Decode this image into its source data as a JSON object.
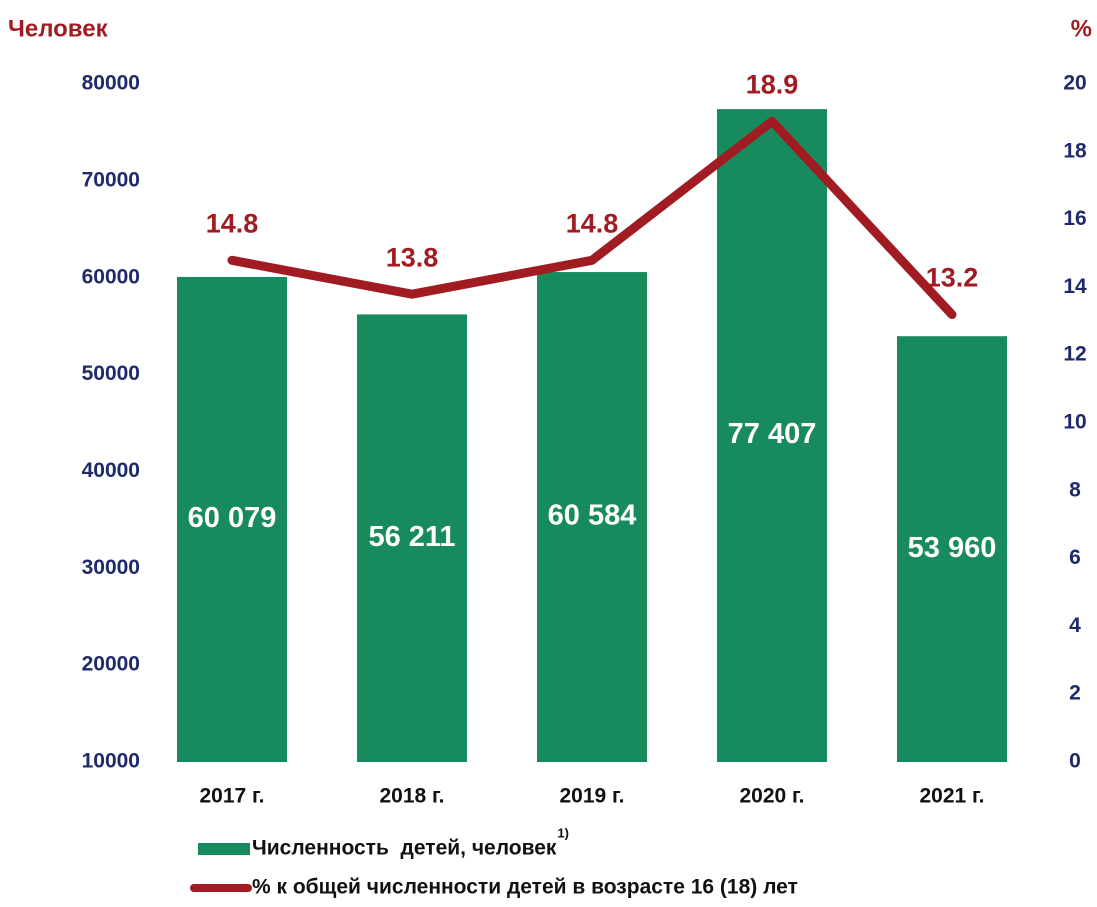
{
  "chart_data": {
    "type": "bar_line",
    "y_label": "Человек",
    "y2_label": "%",
    "categories": [
      "2017 г.",
      "2018 г.",
      "2019 г.",
      "2020 г.",
      "2021 г."
    ],
    "series": [
      {
        "name": "Численность  детей, человек",
        "name_note": "1)",
        "type": "bar",
        "color": "#178a5e",
        "values": [
          60079,
          56211,
          60584,
          77407,
          53960
        ],
        "value_labels": [
          "60 079",
          "56 211",
          "60 584",
          "77 407",
          "53 960"
        ]
      },
      {
        "name": "% к общей численности детей в возрасте 16 (18) лет",
        "type": "line",
        "axis": "y2",
        "color": "#a01c22",
        "values": [
          14.8,
          13.8,
          14.8,
          18.9,
          13.2
        ]
      }
    ],
    "ylim": [
      10000,
      80000
    ],
    "yticks": [
      10000,
      20000,
      30000,
      40000,
      50000,
      60000,
      70000,
      80000
    ],
    "y2lim": [
      0,
      20
    ],
    "y2ticks": [
      0,
      2,
      4,
      6,
      8,
      10,
      12,
      14,
      16,
      18,
      20
    ],
    "grid": false
  }
}
